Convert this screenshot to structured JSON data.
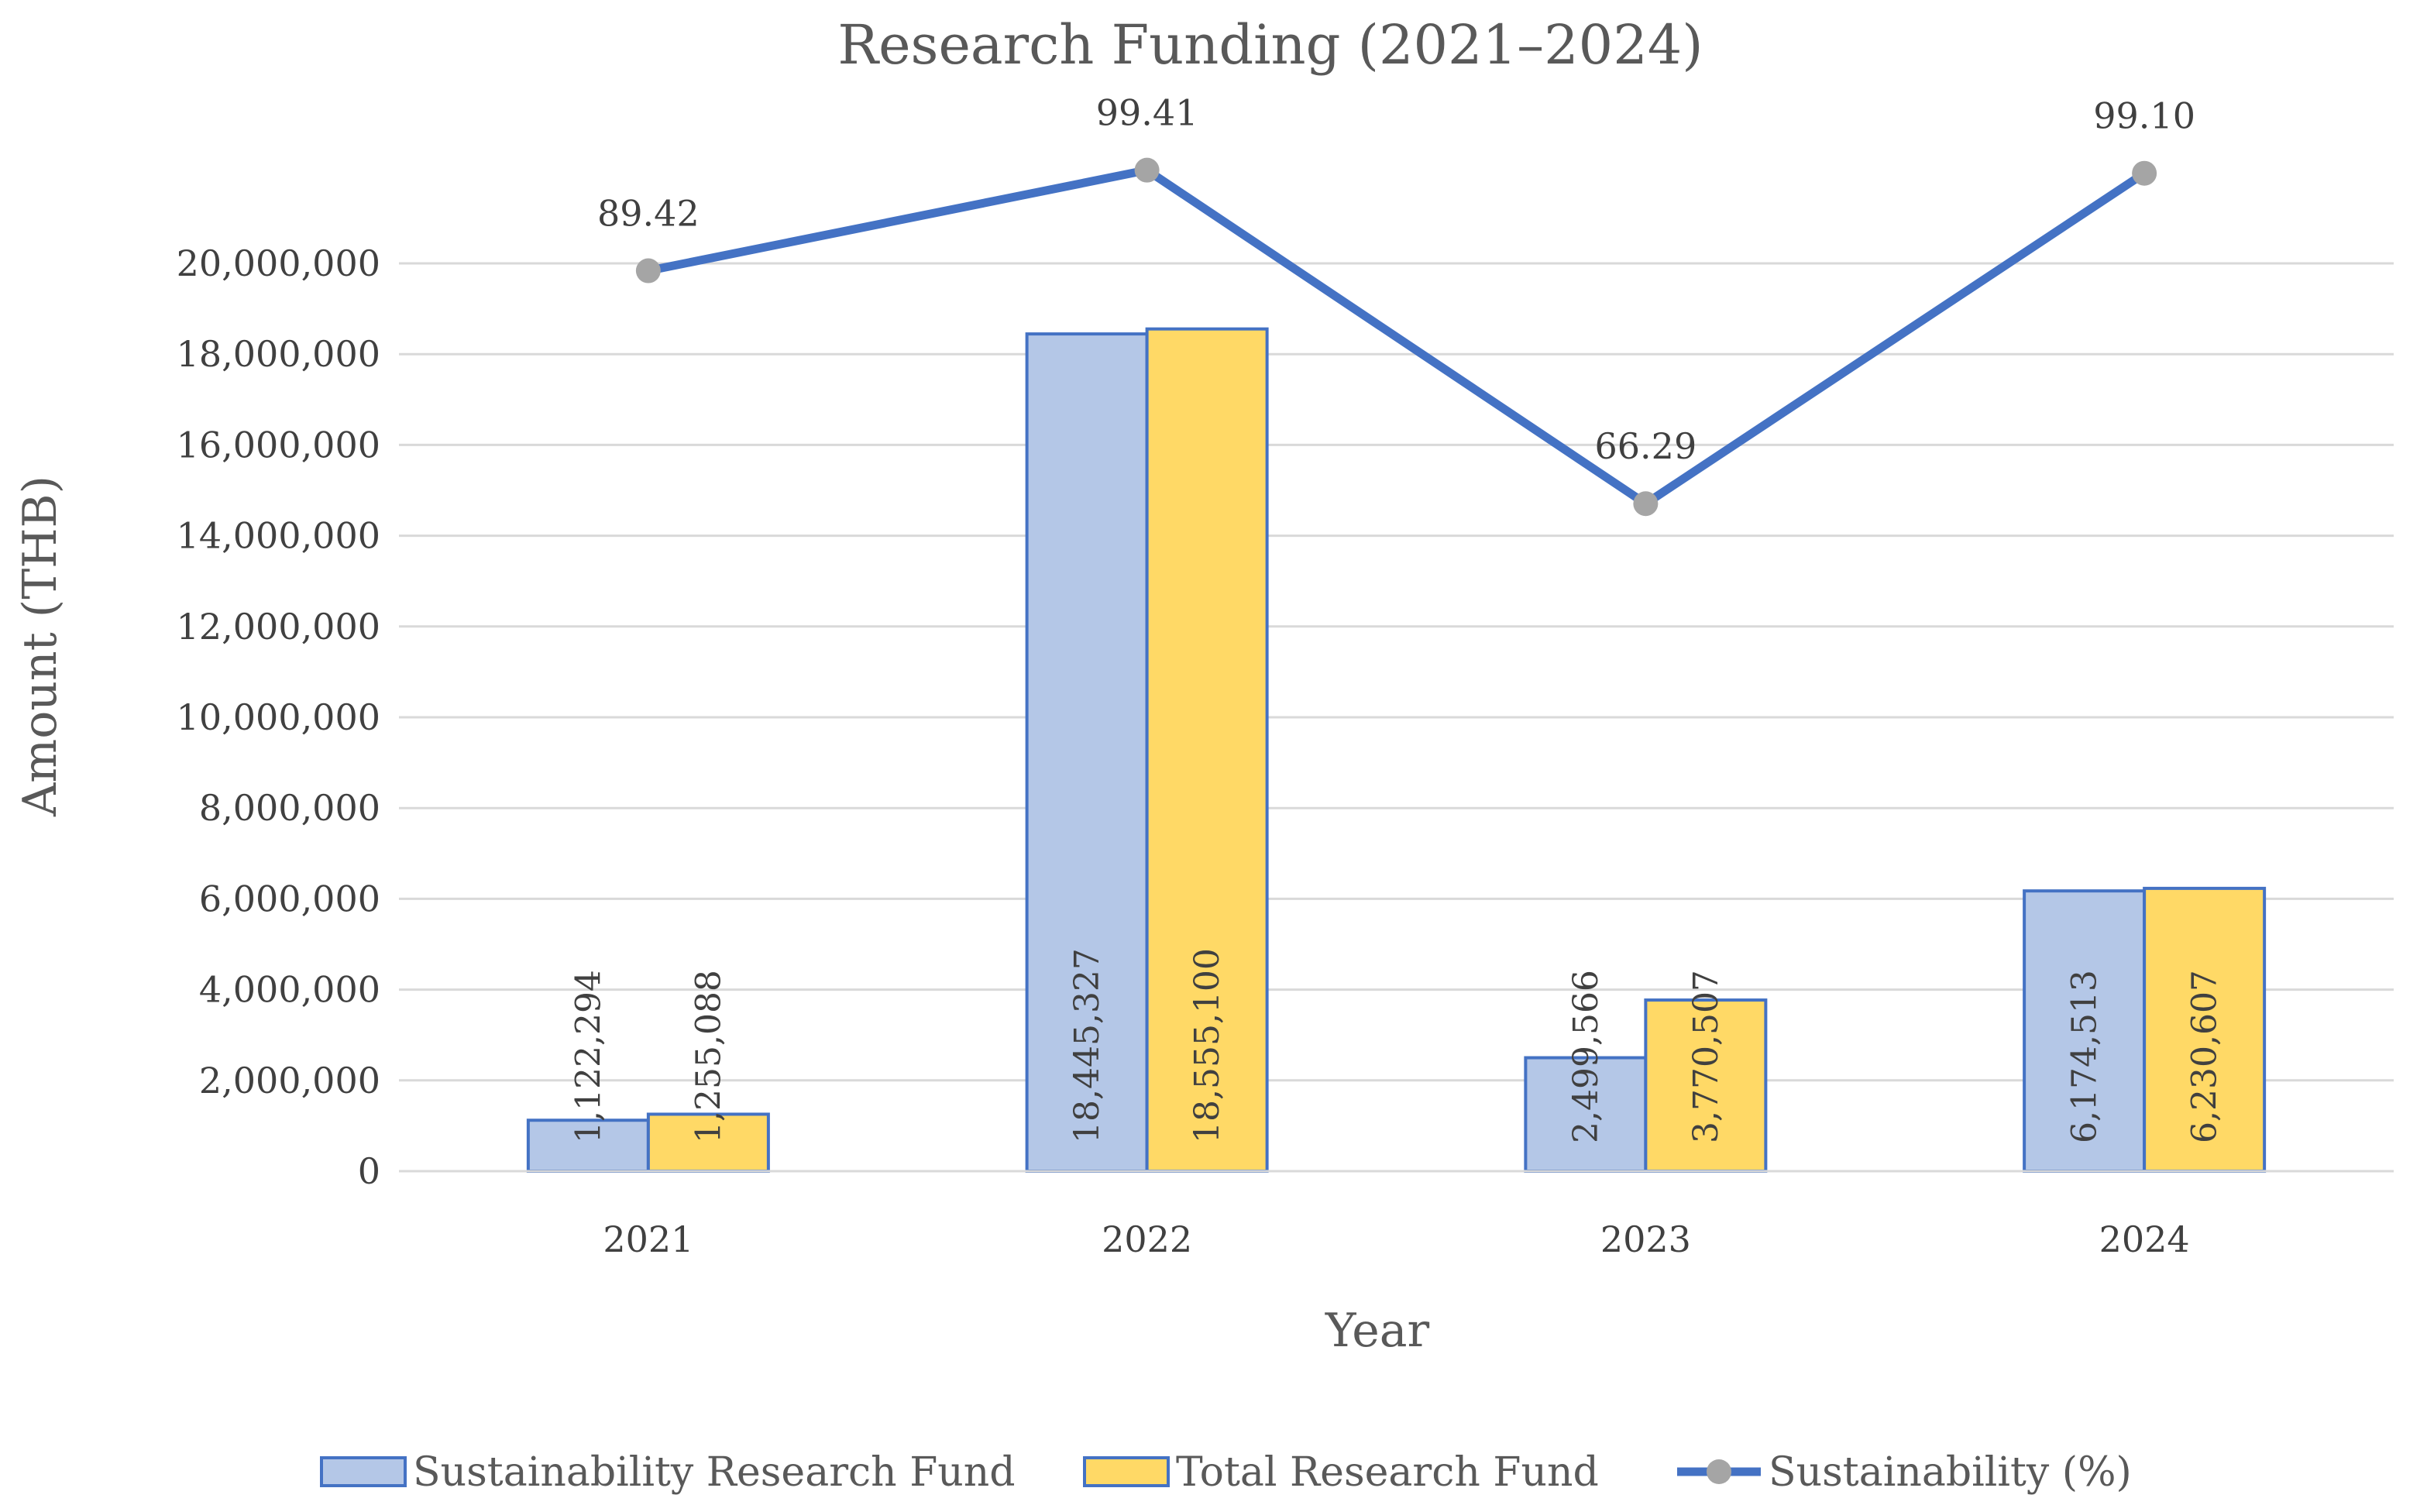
{
  "chart_data": {
    "type": "bar",
    "title": "Research Funding (2021–2024)",
    "xlabel": "Year",
    "ylabel": "Amount (THB)",
    "categories": [
      "2021",
      "2022",
      "2023",
      "2024"
    ],
    "ylim": [
      0,
      20000000
    ],
    "ytick_step": 2000000,
    "ytick_labels": [
      "0",
      "2,000,000",
      "4,000,000",
      "6,000,000",
      "8,000,000",
      "10,000,000",
      "12,000,000",
      "14,000,000",
      "16,000,000",
      "18,000,000",
      "20,000,000"
    ],
    "grid": true,
    "legend_position": "bottom",
    "series": [
      {
        "name": "Sustainability Research Fund",
        "type": "bar",
        "color": "#b4c7e7",
        "edge_color": "#4472c4",
        "values": [
          1122294,
          18445327,
          2499566,
          6174513
        ],
        "labels": [
          "1,122,294",
          "18,445,327",
          "2,499,566",
          "6,174,513"
        ]
      },
      {
        "name": "Total Research Fund",
        "type": "bar",
        "color": "#ffd966",
        "edge_color": "#4472c4",
        "values": [
          1255088,
          18555100,
          3770507,
          6230607
        ],
        "labels": [
          "1,255,088",
          "18,555,100",
          "3,770,507",
          "6,230,607"
        ]
      },
      {
        "name": "Sustainability (%)",
        "type": "line",
        "color": "#4472c4",
        "marker_color": "#a5a5a5",
        "values": [
          89.42,
          99.41,
          66.29,
          99.1
        ],
        "labels": [
          "89.42",
          "99.41",
          "66.29",
          "99.10"
        ],
        "secondary_axis": true
      }
    ]
  }
}
